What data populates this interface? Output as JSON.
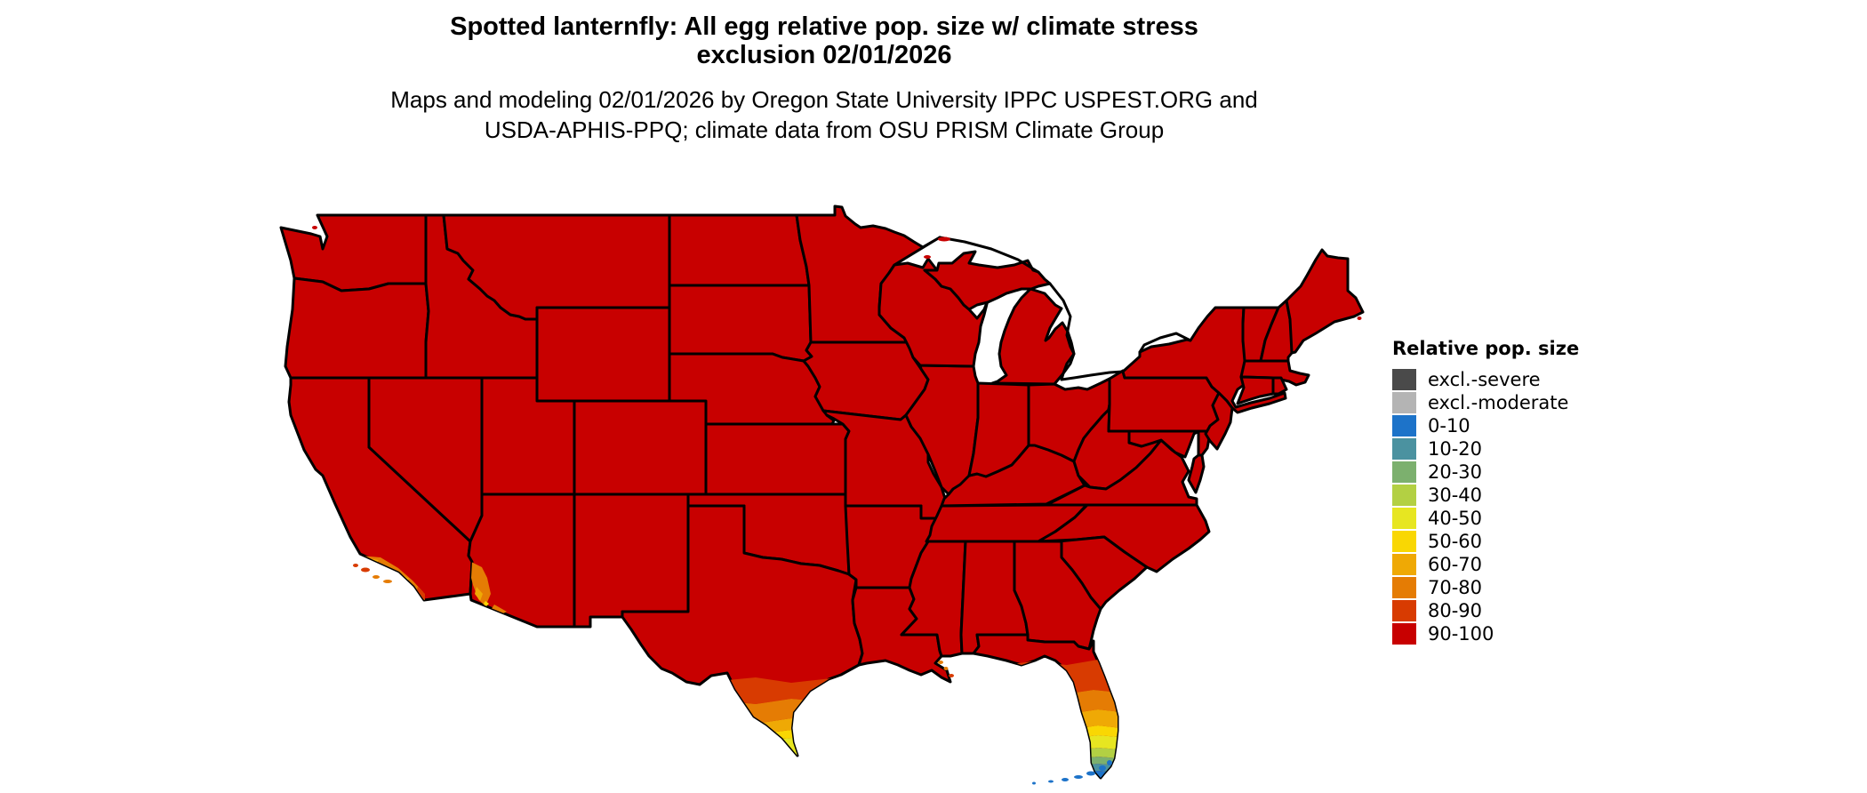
{
  "title": {
    "line1": "Spotted lanternfly: All egg relative pop. size w/ climate stress",
    "line2": "exclusion 02/01/2026"
  },
  "subtitle": {
    "line1": "Maps and modeling 02/01/2026 by Oregon State University IPPC USPEST.ORG and",
    "line2": "USDA-APHIS-PPQ; climate data from OSU PRISM Climate Group"
  },
  "legend": {
    "title": "Relative pop. size",
    "items": [
      {
        "label": "excl.-severe",
        "color": "#4a4a4a"
      },
      {
        "label": "excl.-moderate",
        "color": "#b4b4b4"
      },
      {
        "label": "0-10",
        "color": "#1d73c9"
      },
      {
        "label": "10-20",
        "color": "#4b92a0"
      },
      {
        "label": "20-30",
        "color": "#7cb06e"
      },
      {
        "label": "30-40",
        "color": "#b3d043"
      },
      {
        "label": "40-50",
        "color": "#e7e621"
      },
      {
        "label": "50-60",
        "color": "#f9d703"
      },
      {
        "label": "60-70",
        "color": "#efa905"
      },
      {
        "label": "70-80",
        "color": "#e57c04"
      },
      {
        "label": "80-90",
        "color": "#d83b01"
      },
      {
        "label": "90-100",
        "color": "#c80000"
      }
    ]
  },
  "map": {
    "background": "#ffffff",
    "border_color": "#000000",
    "base_class": "90-100",
    "regions": [
      {
        "name": "conterminous-us",
        "class": "90-100"
      },
      {
        "name": "south-florida-gradient",
        "classes": [
          "80-90",
          "70-80",
          "60-70",
          "50-60",
          "40-50",
          "30-40",
          "20-30",
          "10-20",
          "0-10"
        ]
      },
      {
        "name": "florida-keys",
        "class": "0-10"
      },
      {
        "name": "south-texas-gradient",
        "classes": [
          "80-90",
          "70-80",
          "60-70",
          "50-60",
          "40-50"
        ]
      },
      {
        "name": "southern-california-coast",
        "classes": [
          "80-90",
          "70-80",
          "60-70"
        ]
      },
      {
        "name": "channel-islands",
        "classes": [
          "80-90",
          "70-80"
        ]
      },
      {
        "name": "western-arizona",
        "classes": [
          "70-80",
          "60-70",
          "50-60"
        ]
      },
      {
        "name": "mississippi-delta",
        "class": "70-80"
      }
    ]
  }
}
